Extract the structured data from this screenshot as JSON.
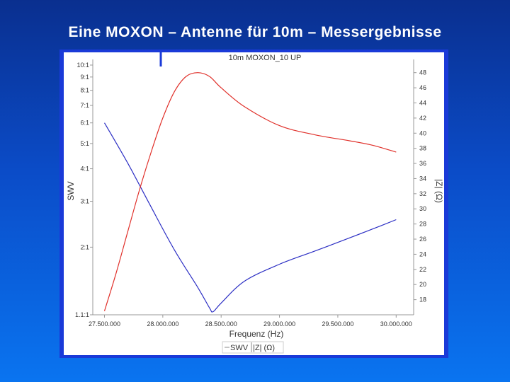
{
  "slide": {
    "title": "Eine MOXON – Antenne für 10m – Messergebnisse"
  },
  "chart_data": {
    "type": "line",
    "title": "10m MOXON_10 UP",
    "xlabel": "Frequenz (Hz)",
    "ylabel": "SWV",
    "y2label": "|Z| (Ω)",
    "xlim": [
      27400000,
      30150000
    ],
    "x_ticks": [
      27500000,
      28000000,
      28500000,
      29000000,
      29500000,
      30000000
    ],
    "x_tick_labels": [
      "27.500.000",
      "28.000.000",
      "28.500.000",
      "29.000.000",
      "29.500.000",
      "30.000.000"
    ],
    "y_scale": "log",
    "ylim": [
      1.1,
      10
    ],
    "y_ticks": [
      1.1,
      2,
      3,
      4,
      5,
      6,
      7,
      8,
      9,
      10
    ],
    "y_tick_labels": [
      "1.1:1",
      "2:1",
      "3:1",
      "4:1",
      "5:1",
      "6:1",
      "7:1",
      "8:1",
      "9:1",
      "10:1"
    ],
    "y2lim": [
      16,
      49
    ],
    "y2_ticks": [
      18,
      20,
      22,
      24,
      26,
      28,
      30,
      32,
      34,
      36,
      38,
      40,
      42,
      44,
      46,
      48
    ],
    "y2_tick_labels": [
      "18",
      "20",
      "22",
      "24",
      "26",
      "28",
      "30",
      "32",
      "34",
      "36",
      "38",
      "40",
      "42",
      "44",
      "46",
      "48"
    ],
    "grid": false,
    "legend_position": "bottom-center",
    "legend": [
      "SWV",
      "|Z| (Ω)"
    ],
    "series": [
      {
        "name": "SWV",
        "axis": "left",
        "color": "#2c2fc4",
        "x": [
          27500000,
          27700000,
          27900000,
          28100000,
          28300000,
          28400000,
          28430000,
          28500000,
          28700000,
          29000000,
          29300000,
          29600000,
          29800000,
          30000000
        ],
        "y": [
          6.0,
          4.2,
          2.85,
          1.95,
          1.4,
          1.17,
          1.13,
          1.22,
          1.48,
          1.72,
          1.93,
          2.17,
          2.35,
          2.55
        ]
      },
      {
        "name": "|Z| (Ω)",
        "axis": "right",
        "color": "#e0302a",
        "x": [
          27500000,
          27600000,
          27700000,
          27800000,
          27900000,
          28000000,
          28100000,
          28200000,
          28300000,
          28400000,
          28500000,
          28700000,
          29000000,
          29300000,
          29600000,
          29800000,
          30000000
        ],
        "y": [
          16.5,
          21.5,
          27.0,
          32.5,
          37.5,
          42.0,
          45.5,
          47.5,
          48.0,
          47.5,
          46.0,
          43.5,
          41.0,
          39.8,
          39.0,
          38.4,
          37.5
        ]
      }
    ]
  }
}
